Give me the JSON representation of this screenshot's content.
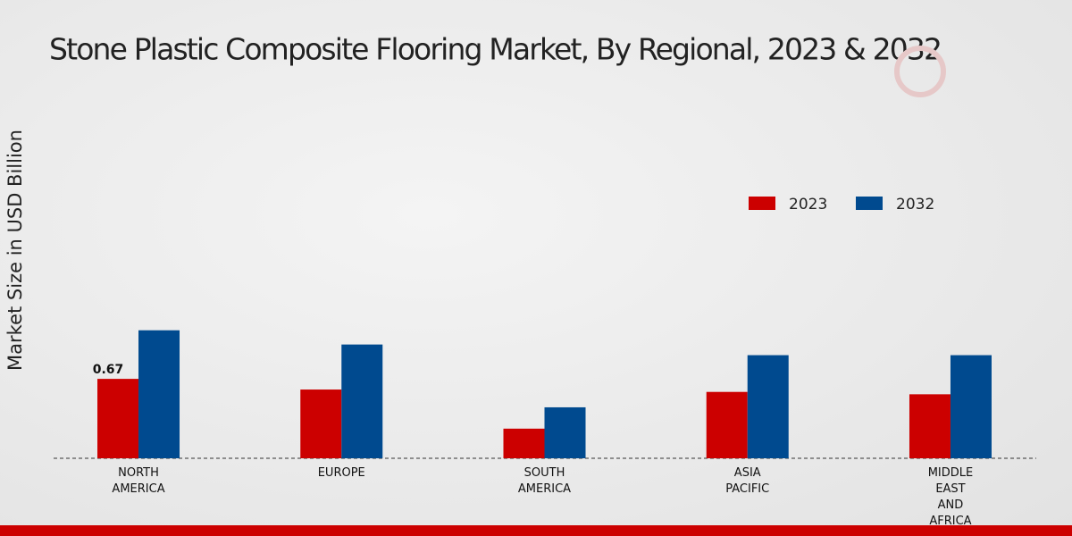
{
  "chart_data": {
    "type": "bar",
    "title": "Stone Plastic Composite Flooring Market, By Regional, 2023 & 2032",
    "y_label": "Market Size in USD Billion",
    "categories": [
      "NORTH AMERICA",
      "EUROPE",
      "SOUTH AMERICA",
      "ASIA PACIFIC",
      "MIDDLE EAST AND AFRICA"
    ],
    "series": [
      {
        "name": "2023",
        "color": "#cc0000",
        "values": [
          0.67,
          0.58,
          0.25,
          0.56,
          0.54
        ]
      },
      {
        "name": "2032",
        "color": "#004a8f",
        "values": [
          1.08,
          0.96,
          0.43,
          0.87,
          0.87
        ]
      }
    ],
    "labeled_points": [
      [
        0,
        0
      ]
    ],
    "ylim": [
      0,
      3
    ]
  }
}
